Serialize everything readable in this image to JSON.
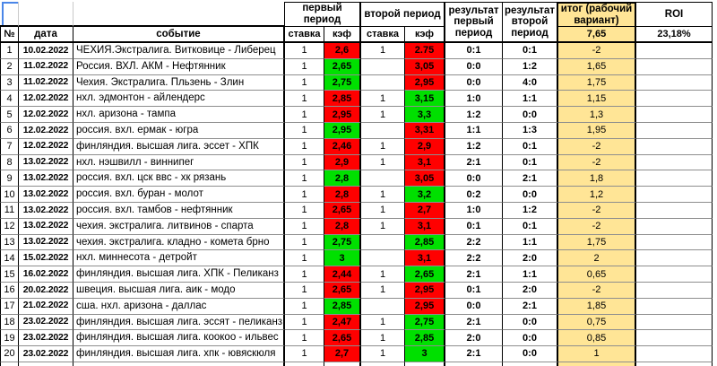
{
  "colors": {
    "win": "#00e000",
    "loss": "#ff0000",
    "total_bg": "#ffe596",
    "selection": "#4a86e8"
  },
  "header": {
    "num": "№",
    "date": "дата",
    "event": "событие",
    "period1": "первый период",
    "period2": "второй период",
    "stake": "ставка",
    "odds": "кэф",
    "result1": "результат первый период",
    "result2": "результат второй период",
    "total": "итог (рабочий вариант)",
    "total_value": "7,65",
    "roi": "ROI",
    "roi_value": "23,18%"
  },
  "rows": [
    {
      "n": "1",
      "date": "10.02.2022",
      "event": "ЧЕХИЯ.Экстралига. Витковице - Либерец",
      "s1": "1",
      "o1": "2,6",
      "o1s": "loss",
      "s2": "1",
      "o2": "2.75",
      "o2s": "loss",
      "r1": "0:1",
      "r2": "0:1",
      "total": "-2"
    },
    {
      "n": "2",
      "date": "11.02.2022",
      "event": "Россия. ВХЛ. АКМ - Нефтянник",
      "s1": "1",
      "o1": "2,65",
      "o1s": "win",
      "s2": "",
      "o2": "3,05",
      "o2s": "loss",
      "r1": "0:0",
      "r2": "1:2",
      "total": "1,65"
    },
    {
      "n": "3",
      "date": "11.02.2022",
      "event": "Чехия. Экстралига. Пльзень - Злин",
      "s1": "1",
      "o1": "2,75",
      "o1s": "win",
      "s2": "",
      "o2": "2,95",
      "o2s": "loss",
      "r1": "0:0",
      "r2": "4:0",
      "total": "1,75"
    },
    {
      "n": "4",
      "date": "12.02.2022",
      "event": "нхл. эдмонтон - айлендерс",
      "s1": "1",
      "o1": "2,85",
      "o1s": "loss",
      "s2": "1",
      "o2": "3,15",
      "o2s": "win",
      "r1": "1:0",
      "r2": "1:1",
      "total": "1,15"
    },
    {
      "n": "5",
      "date": "12.02.2022",
      "event": "нхл. аризона - тампа",
      "s1": "1",
      "o1": "2,95",
      "o1s": "loss",
      "s2": "1",
      "o2": "3,3",
      "o2s": "win",
      "r1": "1:2",
      "r2": "0:0",
      "total": "1,3"
    },
    {
      "n": "6",
      "date": "12.02.2022",
      "event": "россия. вхл. ермак - югра",
      "s1": "1",
      "o1": "2,95",
      "o1s": "win",
      "s2": "",
      "o2": "3,31",
      "o2s": "loss",
      "r1": "1:1",
      "r2": "1:3",
      "total": "1,95"
    },
    {
      "n": "7",
      "date": "12.02.2022",
      "event": "финляндия. высшая лига. эссет - ХПК",
      "s1": "1",
      "o1": "2,46",
      "o1s": "loss",
      "s2": "1",
      "o2": "2,9",
      "o2s": "loss",
      "r1": "1:2",
      "r2": "0:1",
      "total": "-2"
    },
    {
      "n": "8",
      "date": "13.02.2022",
      "event": "нхл. нэшвилл - виннипег",
      "s1": "1",
      "o1": "2,9",
      "o1s": "loss",
      "s2": "1",
      "o2": "3,1",
      "o2s": "loss",
      "r1": "2:1",
      "r2": "0:1",
      "total": "-2"
    },
    {
      "n": "9",
      "date": "13.02.2022",
      "event": "россия. вхл. цск ввс - хк рязань",
      "s1": "1",
      "o1": "2,8",
      "o1s": "win",
      "s2": "",
      "o2": "3,05",
      "o2s": "loss",
      "r1": "0:0",
      "r2": "2:1",
      "total": "1,8"
    },
    {
      "n": "10",
      "date": "13.02.2022",
      "event": "россия. вхл. буран - молот",
      "s1": "1",
      "o1": "2,8",
      "o1s": "loss",
      "s2": "1",
      "o2": "3,2",
      "o2s": "win",
      "r1": "0:2",
      "r2": "0:0",
      "total": "1,2"
    },
    {
      "n": "11",
      "date": "13.02.2022",
      "event": "россия. вхл. тамбов - нефтянник",
      "s1": "1",
      "o1": "2,65",
      "o1s": "loss",
      "s2": "1",
      "o2": "2,7",
      "o2s": "loss",
      "r1": "1:0",
      "r2": "1:2",
      "total": "-2"
    },
    {
      "n": "12",
      "date": "13.02.2022",
      "event": "чехия. экстралига. литвинов - спарта",
      "s1": "1",
      "o1": "2,8",
      "o1s": "loss",
      "s2": "1",
      "o2": "3,1",
      "o2s": "loss",
      "r1": "0:1",
      "r2": "0:1",
      "total": "-2"
    },
    {
      "n": "13",
      "date": "13.02.2022",
      "event": "чехия. экстралига. кладно - комета брно",
      "s1": "1",
      "o1": "2,75",
      "o1s": "win",
      "s2": "",
      "o2": "2,85",
      "o2s": "win",
      "r1": "2:2",
      "r2": "1:1",
      "total": "1,75"
    },
    {
      "n": "14",
      "date": "15.02.2022",
      "event": "нхл. миннесота - детройт",
      "s1": "1",
      "o1": "3",
      "o1s": "win",
      "s2": "",
      "o2": "3,1",
      "o2s": "loss",
      "r1": "2:2",
      "r2": "2:0",
      "total": "2"
    },
    {
      "n": "15",
      "date": "16.02.2022",
      "event": "финляндия. высшая лига. ХПК - Пеликанз",
      "s1": "1",
      "o1": "2,44",
      "o1s": "loss",
      "s2": "1",
      "o2": "2,65",
      "o2s": "win",
      "r1": "2:1",
      "r2": "1:1",
      "total": "0,65"
    },
    {
      "n": "16",
      "date": "20.02.2022",
      "event": "швеция. высшая лига. аик - модо",
      "s1": "1",
      "o1": "2,65",
      "o1s": "loss",
      "s2": "1",
      "o2": "2,95",
      "o2s": "loss",
      "r1": "0:1",
      "r2": "2:0",
      "total": "-2"
    },
    {
      "n": "17",
      "date": "21.02.2022",
      "event": "сша. нхл. аризона - даллас",
      "s1": "1",
      "o1": "2,85",
      "o1s": "win",
      "s2": "",
      "o2": "2,95",
      "o2s": "loss",
      "r1": "0:0",
      "r2": "2:1",
      "total": "1,85"
    },
    {
      "n": "18",
      "date": "23.02.2022",
      "event": "финляндия. высшая лига. эссят - пеликанз",
      "s1": "1",
      "o1": "2,47",
      "o1s": "loss",
      "s2": "1",
      "o2": "2,75",
      "o2s": "win",
      "r1": "2:1",
      "r2": "0:0",
      "total": "0,75"
    },
    {
      "n": "19",
      "date": "23.02.2022",
      "event": "финляндия. высшая лига. коокоо - ильвес",
      "s1": "1",
      "o1": "2,65",
      "o1s": "loss",
      "s2": "1",
      "o2": "2,85",
      "o2s": "win",
      "r1": "2:0",
      "r2": "0:0",
      "total": "0,85"
    },
    {
      "n": "20",
      "date": "23.02.2022",
      "event": "финляндия. высшая лига. хпк - ювяскюля",
      "s1": "1",
      "o1": "2,7",
      "o1s": "loss",
      "s2": "1",
      "o2": "3",
      "o2s": "win",
      "r1": "2:1",
      "r2": "0:0",
      "total": "1"
    }
  ]
}
